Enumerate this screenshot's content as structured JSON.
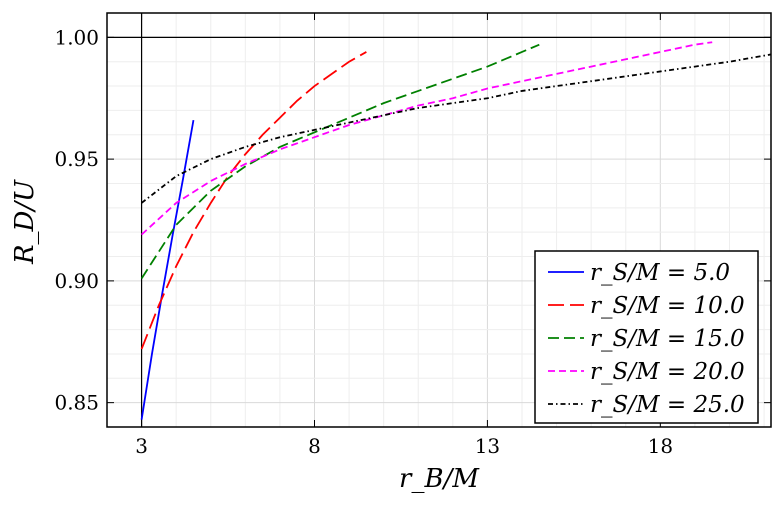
{
  "chart_data": {
    "type": "line",
    "title": "",
    "xlabel": "r_B/M",
    "ylabel": "R_D/U",
    "xlim": [
      2.0,
      21.2
    ],
    "ylim": [
      0.84,
      1.01
    ],
    "xticks": [
      3,
      8,
      13,
      18
    ],
    "yticks": [
      0.85,
      0.9,
      0.95,
      1.0
    ],
    "xtick_labels": [
      "3",
      "8",
      "13",
      "18"
    ],
    "ytick_labels": [
      "0.85",
      "0.90",
      "0.95",
      "1.00"
    ],
    "grid": true,
    "reference_lines": {
      "horizontal_y": 1.0,
      "vertical_x": 3.0
    },
    "legend_position": "bottom-right",
    "series": [
      {
        "name": "r_S/M = 5.0",
        "color": "#0000ff",
        "dash": "solid",
        "x": [
          3.0,
          3.3,
          3.6,
          3.9,
          4.2,
          4.5
        ],
        "y": [
          0.843,
          0.87,
          0.895,
          0.919,
          0.942,
          0.966
        ]
      },
      {
        "name": "r_S/M = 10.0",
        "color": "#ff0000",
        "dash": "longdash",
        "x": [
          3.0,
          3.5,
          4.0,
          4.5,
          5.0,
          5.5,
          6.0,
          6.5,
          7.0,
          7.5,
          8.0,
          8.5,
          9.0,
          9.5
        ],
        "y": [
          0.872,
          0.89,
          0.906,
          0.92,
          0.932,
          0.943,
          0.952,
          0.96,
          0.967,
          0.974,
          0.98,
          0.985,
          0.99,
          0.994
        ]
      },
      {
        "name": "r_S/M = 15.0",
        "color": "#008000",
        "dash": "dash",
        "x": [
          3.0,
          4.0,
          5.0,
          6.0,
          7.0,
          8.0,
          9.0,
          10.0,
          11.0,
          12.0,
          13.0,
          14.0,
          14.5
        ],
        "y": [
          0.901,
          0.923,
          0.937,
          0.947,
          0.955,
          0.961,
          0.967,
          0.973,
          0.978,
          0.983,
          0.988,
          0.994,
          0.997
        ]
      },
      {
        "name": "r_S/M = 20.0",
        "color": "#ff00ff",
        "dash": "shortdash",
        "x": [
          3.0,
          4.0,
          5.0,
          6.0,
          7.0,
          8.0,
          9.0,
          10.0,
          11.0,
          12.0,
          13.0,
          14.0,
          15.0,
          16.0,
          17.0,
          18.0,
          19.0,
          19.5
        ],
        "y": [
          0.919,
          0.932,
          0.941,
          0.948,
          0.954,
          0.959,
          0.964,
          0.968,
          0.972,
          0.975,
          0.979,
          0.982,
          0.985,
          0.988,
          0.991,
          0.994,
          0.997,
          0.998
        ]
      },
      {
        "name": "r_S/M = 25.0",
        "color": "#000000",
        "dash": "dashdot",
        "x": [
          3.0,
          4.0,
          5.0,
          6.0,
          7.0,
          8.0,
          9.0,
          10.0,
          11.0,
          12.0,
          13.0,
          14.0,
          15.0,
          16.0,
          17.0,
          18.0,
          19.0,
          20.0,
          21.2
        ],
        "y": [
          0.932,
          0.943,
          0.95,
          0.955,
          0.959,
          0.962,
          0.965,
          0.968,
          0.971,
          0.973,
          0.975,
          0.978,
          0.98,
          0.982,
          0.984,
          0.986,
          0.988,
          0.99,
          0.993
        ]
      }
    ]
  }
}
